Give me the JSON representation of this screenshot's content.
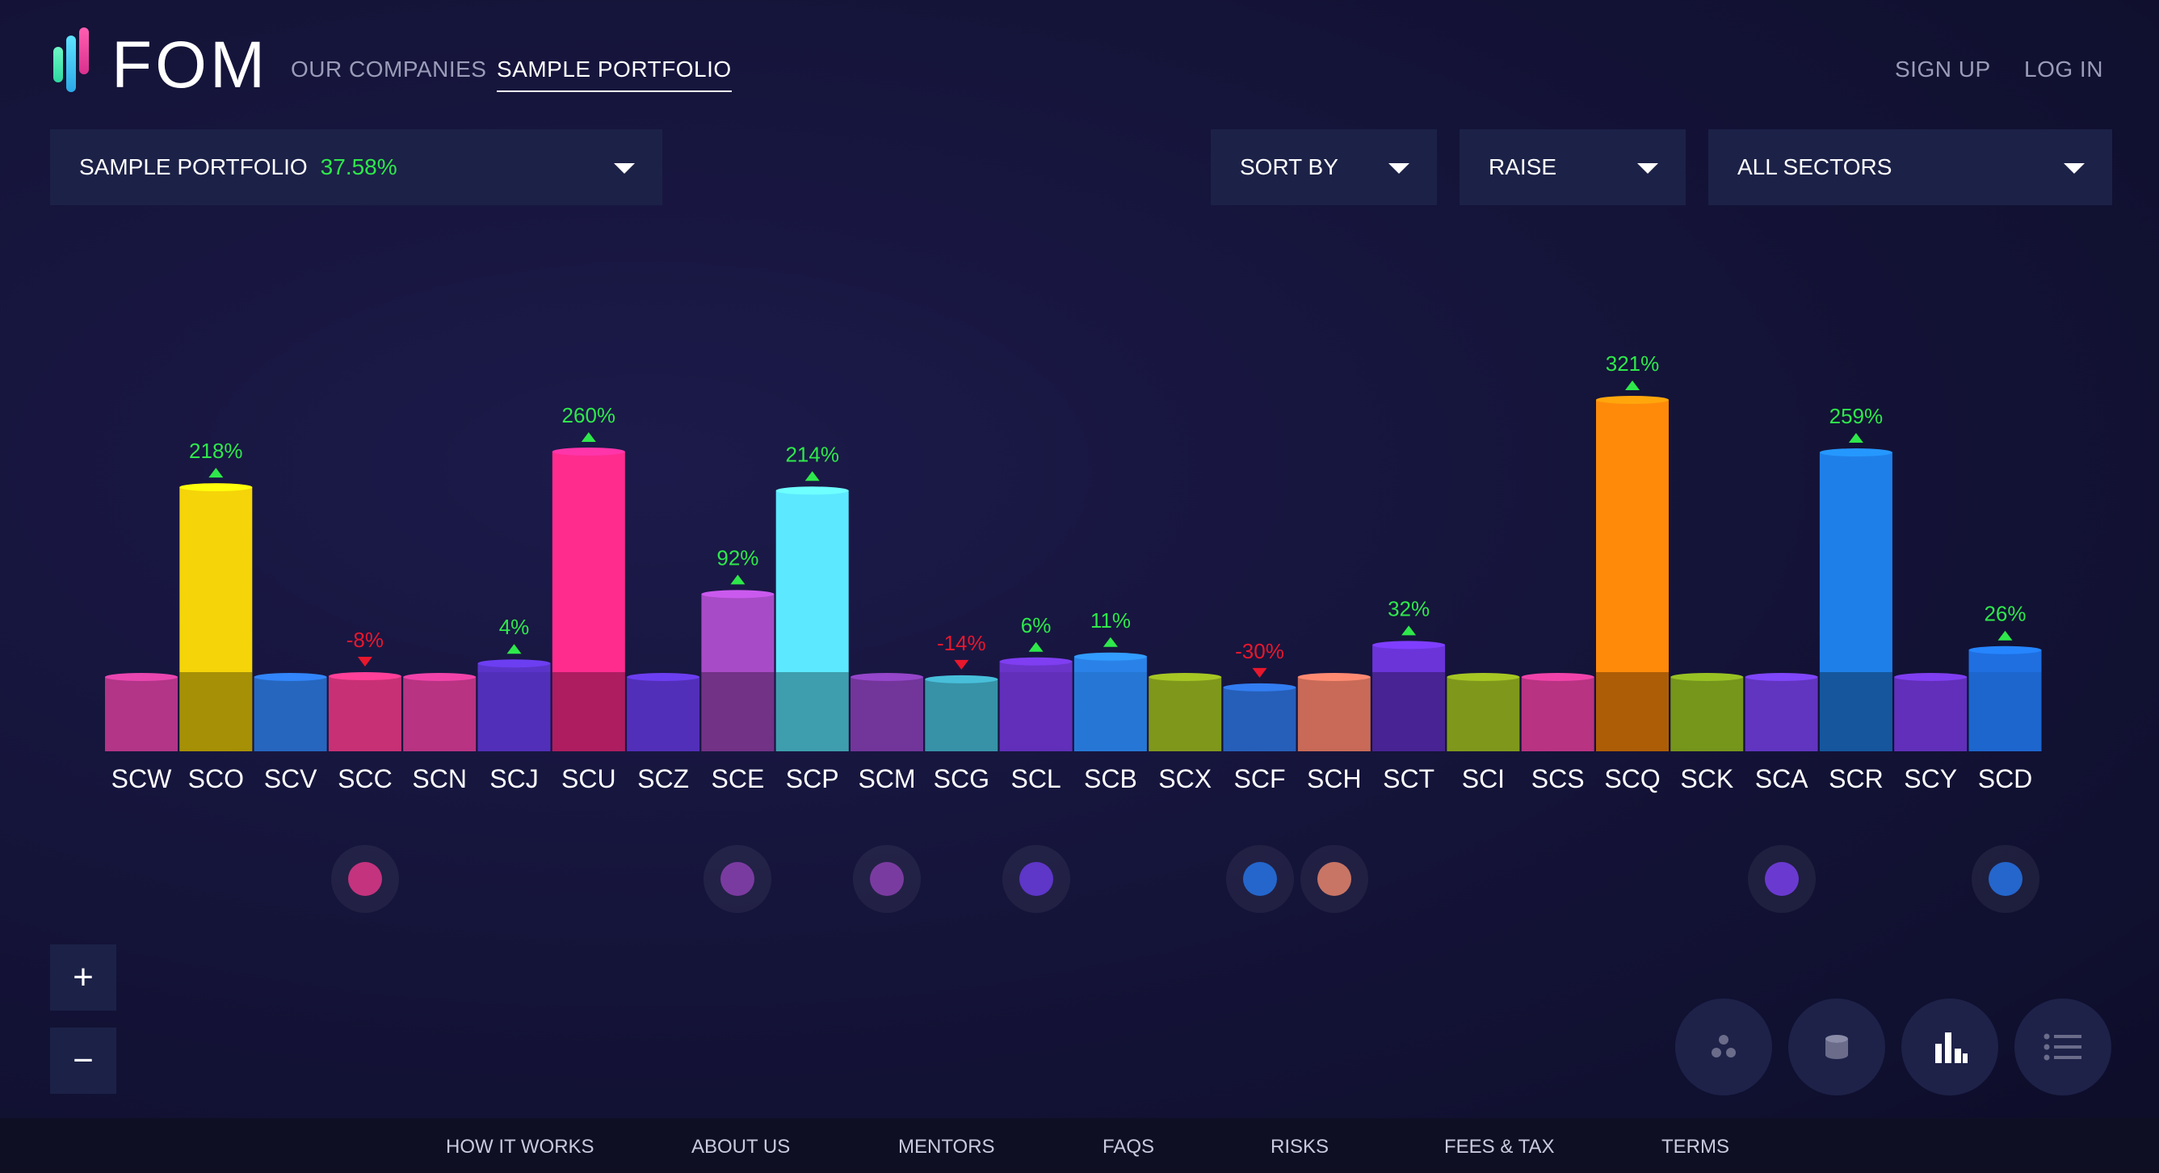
{
  "header": {
    "logo_text": "FOM",
    "nav": [
      "OUR COMPANIES",
      "SAMPLE PORTFOLIO"
    ],
    "sign_up": "SIGN UP",
    "log_in": "LOG IN"
  },
  "controls": {
    "portfolio_label": "SAMPLE PORTFOLIO",
    "portfolio_pct": "37.58%",
    "sort_by": "SORT BY",
    "raise": "RAISE",
    "sectors": "ALL SECTORS"
  },
  "zoom": {
    "plus": "+",
    "minus": "−"
  },
  "view_modes": [
    "bubbles-icon",
    "cylinder-icon",
    "bar-chart-icon",
    "list-icon"
  ],
  "footer": [
    "HOW IT WORKS",
    "ABOUT US",
    "MENTORS",
    "FAQS",
    "RISKS",
    "FEES & TAX",
    "TERMS"
  ],
  "colors": {
    "positive": "#2ee84b",
    "negative": "#e8172d",
    "panel": "#1c2147"
  },
  "chart_data": {
    "type": "bar",
    "categories": [
      "SCW",
      "SCO",
      "SCV",
      "SCC",
      "SCN",
      "SCJ",
      "SCU",
      "SCZ",
      "SCE",
      "SCP",
      "SCM",
      "SCG",
      "SCL",
      "SCB",
      "SCX",
      "SCF",
      "SCH",
      "SCT",
      "SCI",
      "SCS",
      "SCQ",
      "SCK",
      "SCA",
      "SCR",
      "SCY",
      "SCD"
    ],
    "growth_labels": [
      "",
      "218%",
      "",
      "-8%",
      "",
      "4%",
      "260%",
      "",
      "92%",
      "214%",
      "",
      "-14%",
      "6%",
      "11%",
      "",
      "-30%",
      "",
      "32%",
      "",
      "",
      "321%",
      "",
      "",
      "259%",
      "",
      "26%"
    ],
    "direction": [
      "",
      "up",
      "",
      "down",
      "",
      "up",
      "up",
      "",
      "up",
      "up",
      "",
      "down",
      "up",
      "up",
      "",
      "down",
      "",
      "up",
      "",
      "",
      "up",
      "",
      "",
      "up",
      "",
      "up"
    ],
    "colors": [
      "#c23a93",
      "#f5d40a",
      "#2a6fd0",
      "#d9357f",
      "#c8388e",
      "#5a34c9",
      "#ff2c8e",
      "#5a34c9",
      "#a84bc6",
      "#5ce9ff",
      "#7c3aa8",
      "#3c9fb6",
      "#6a34c9",
      "#2a82e8",
      "#8aa51e",
      "#2a68c9",
      "#d9735f",
      "#6a34d9",
      "#8aa51e",
      "#c8388e",
      "#ff8a0a",
      "#7fa21e",
      "#6a3ad0",
      "#1f7fe8",
      "#6a34c9",
      "#1f6fe0"
    ],
    "values": [
      0,
      218,
      0,
      -8,
      0,
      4,
      260,
      0,
      92,
      214,
      0,
      -14,
      6,
      11,
      0,
      -30,
      0,
      32,
      0,
      0,
      321,
      0,
      0,
      259,
      0,
      26
    ],
    "markers": [
      "",
      "",
      "",
      "#c4337e",
      "",
      "",
      "",
      "",
      "#7a3ba0",
      "",
      "#7a3ba0",
      "",
      "#5e36c8",
      "",
      "",
      "#2466cc",
      "#c87565",
      "",
      "",
      "",
      "",
      "",
      "#6a3ad0",
      "",
      "",
      "#2466cc"
    ]
  }
}
